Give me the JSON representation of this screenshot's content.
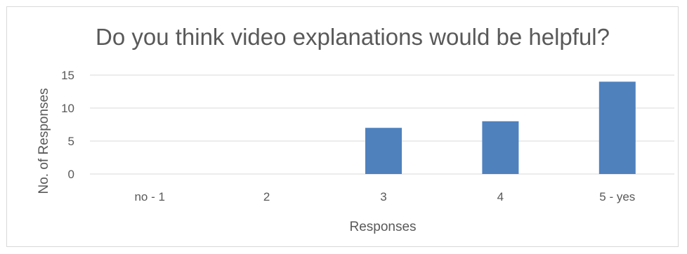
{
  "chart_data": {
    "type": "bar",
    "title": "Do you think video explanations would be helpful?",
    "xlabel": "Responses",
    "ylabel": "No. of Responses",
    "categories": [
      "no - 1",
      "2",
      "3",
      "4",
      "5 - yes"
    ],
    "values": [
      0,
      0,
      7,
      8,
      14
    ],
    "ylim": [
      0,
      15
    ],
    "yticks": [
      "0",
      "5",
      "10",
      "15"
    ],
    "grid": true,
    "legend": "none",
    "colors": {
      "bar": "#4f81bd",
      "grid": "#d9d9d9",
      "text": "#595959"
    }
  }
}
